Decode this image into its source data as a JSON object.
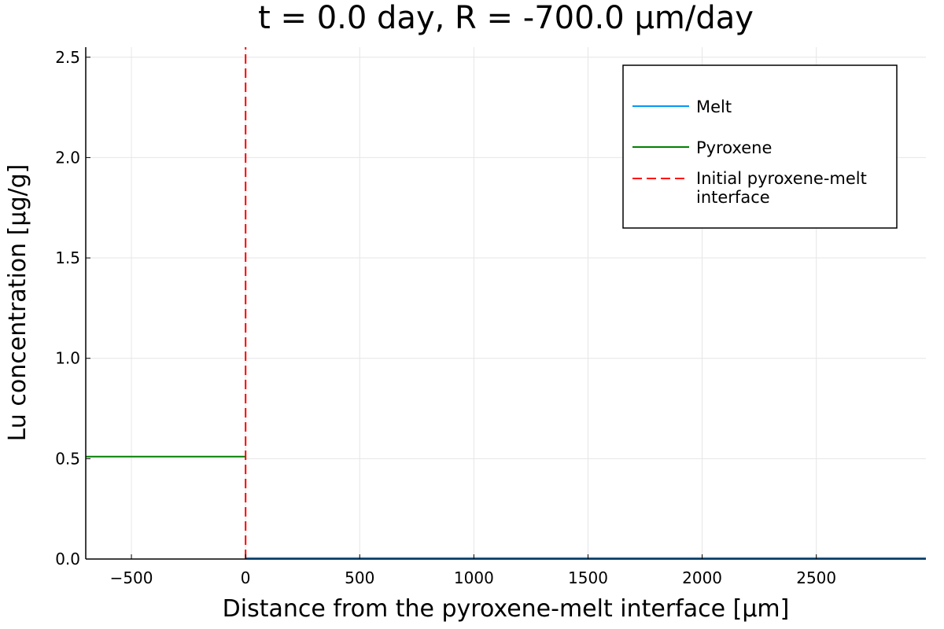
{
  "chart_data": {
    "type": "line",
    "title": "t = 0.0 day, R = -700.0 μm/day",
    "xlabel": "Distance from the pyroxene-melt interface [μm]",
    "ylabel": "Lu concentration [μg/g]",
    "xlim": [
      -700,
      2980
    ],
    "ylim": [
      0,
      2.55
    ],
    "xticks": [
      -500,
      0,
      500,
      1000,
      1500,
      2000,
      2500
    ],
    "xtick_labels": [
      "−500",
      "0",
      "500",
      "1000",
      "1500",
      "2000",
      "2500"
    ],
    "yticks": [
      0,
      0.5,
      1.0,
      1.5,
      2.0,
      2.5
    ],
    "ytick_labels": [
      "0.0",
      "0.5",
      "1.0",
      "1.5",
      "2.0",
      "2.5"
    ],
    "grid": true,
    "legend_position": "top-right",
    "series": [
      {
        "name": "Melt",
        "color": "#009af9",
        "style": "solid",
        "x": [
          0,
          2980
        ],
        "y": [
          0.005,
          0.005
        ]
      },
      {
        "name": "Pyroxene",
        "color": "#008000",
        "style": "solid",
        "x": [
          -700,
          0
        ],
        "y": [
          0.51,
          0.51
        ]
      },
      {
        "name": "Initial pyroxene-melt interface",
        "name_lines": [
          "Initial pyroxene-melt",
          "interface"
        ],
        "color": "#ff0000",
        "style": "dashed",
        "x": [
          0,
          0
        ],
        "y": [
          0,
          2.55
        ]
      }
    ]
  }
}
